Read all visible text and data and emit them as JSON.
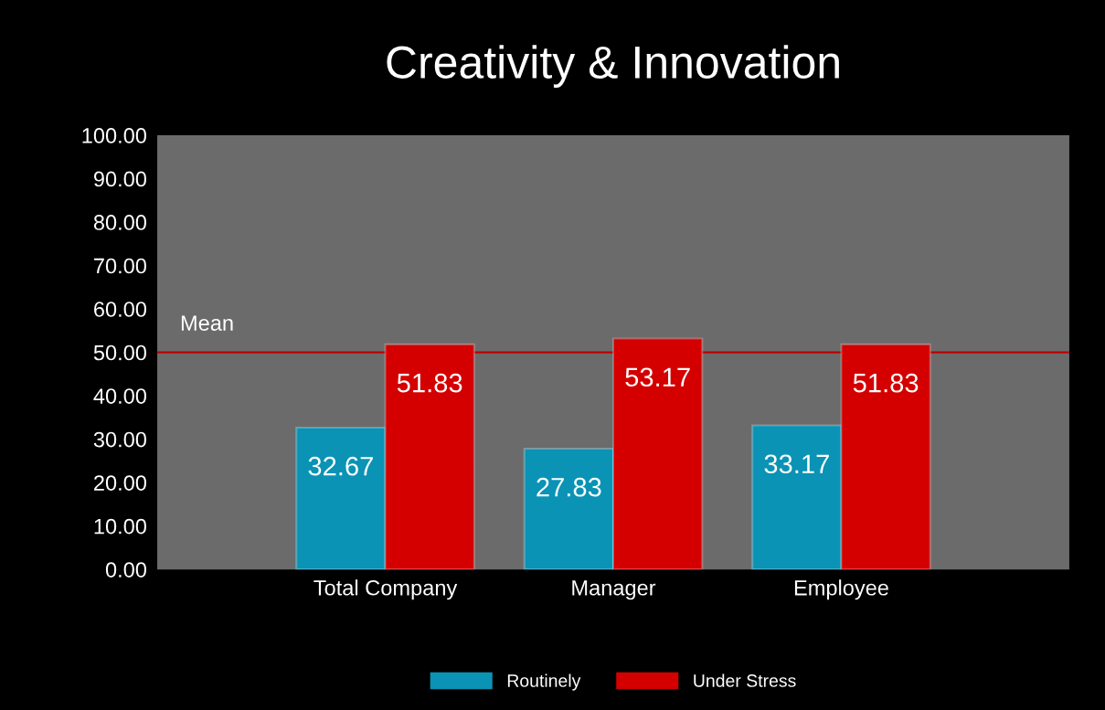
{
  "chart_data": {
    "type": "bar",
    "title": "Creativity & Innovation",
    "categories": [
      "Total Company",
      "Manager",
      "Employee"
    ],
    "series": [
      {
        "name": "Routinely",
        "color": "#0a93b5",
        "values": [
          32.67,
          27.83,
          33.17
        ]
      },
      {
        "name": "Under Stress",
        "color": "#d40000",
        "values": [
          51.83,
          53.17,
          51.83
        ]
      }
    ],
    "ylim": [
      0,
      100
    ],
    "yticks": [
      {
        "value": 0,
        "label": "0.00"
      },
      {
        "value": 10,
        "label": "10.00"
      },
      {
        "value": 20,
        "label": "20.00"
      },
      {
        "value": 30,
        "label": "30.00"
      },
      {
        "value": 40,
        "label": "40.00"
      },
      {
        "value": 50,
        "label": "50.00"
      },
      {
        "value": 60,
        "label": "60.00"
      },
      {
        "value": 70,
        "label": "70.00"
      },
      {
        "value": 80,
        "label": "80.00"
      },
      {
        "value": 90,
        "label": "90.00"
      },
      {
        "value": 100,
        "label": "100.00"
      }
    ],
    "ref_lines": [
      {
        "axis": "y",
        "value": 50,
        "label": "Mean",
        "color": "#c00000"
      }
    ],
    "data_labels": true,
    "grid": false,
    "legend": "bottom"
  }
}
